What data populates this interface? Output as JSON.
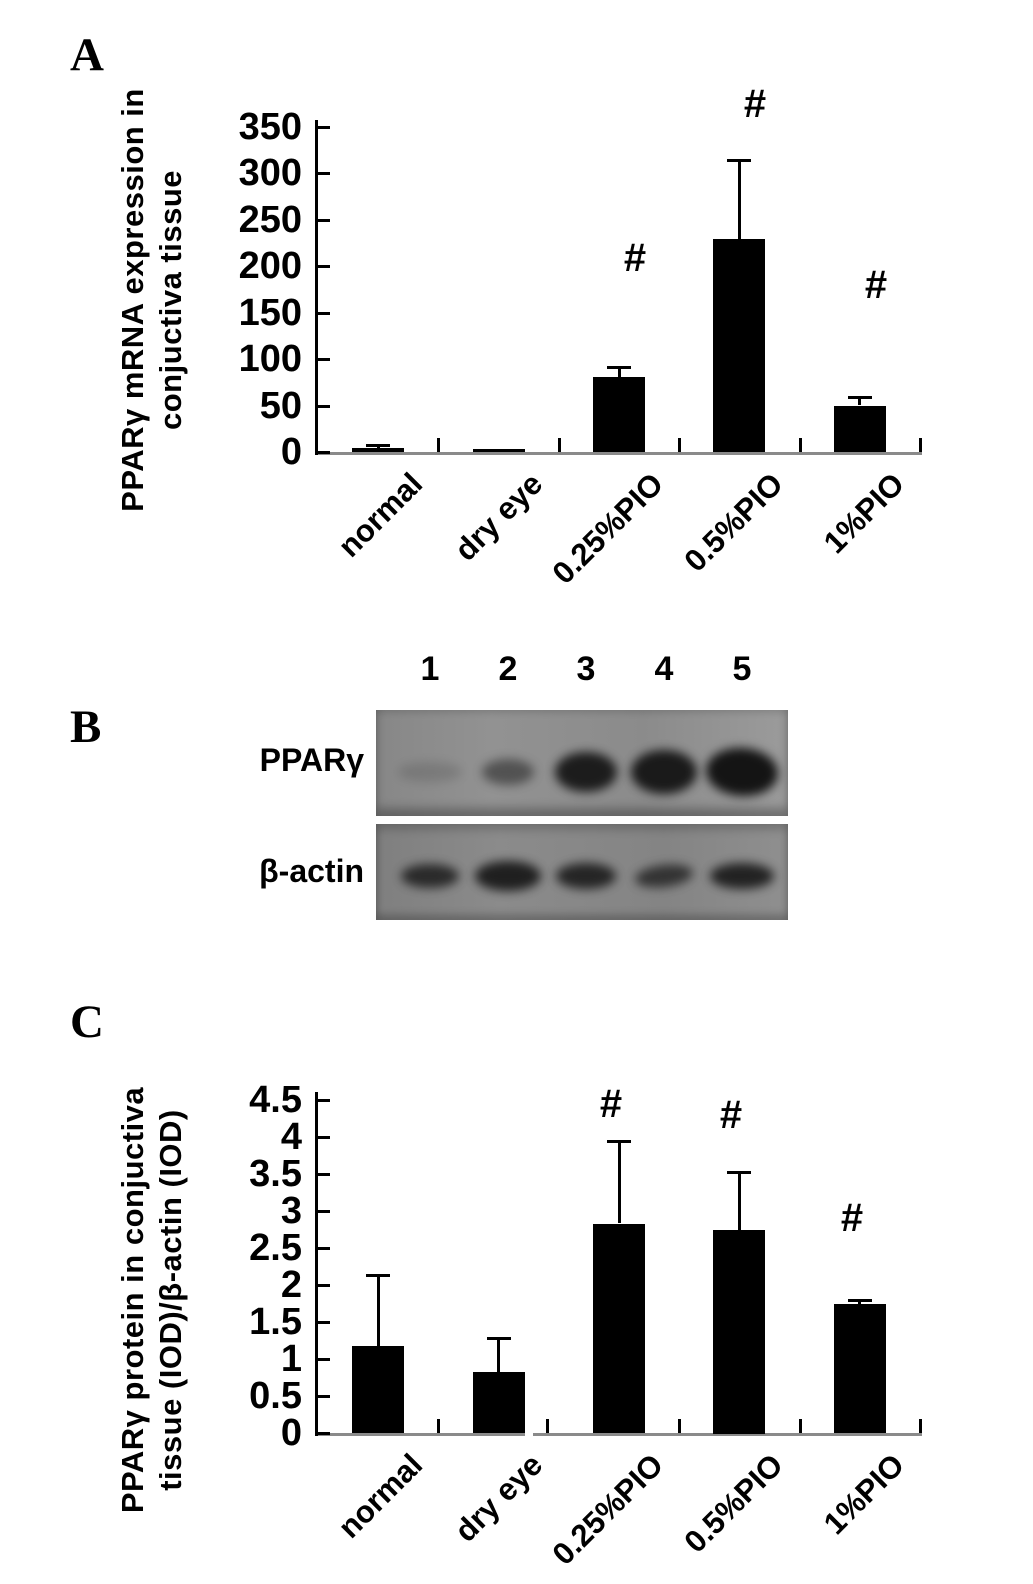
{
  "panels": {
    "a": {
      "letter": "A"
    },
    "b": {
      "letter": "B"
    },
    "c": {
      "letter": "C"
    }
  },
  "chart_data": [
    {
      "id": "A",
      "type": "bar",
      "title": "",
      "xlabel": "",
      "ylabel": "PPARγ mRNA expression in conjuctiva tissue",
      "ylabel_lines": [
        "PPARγ mRNA expression in",
        "conjuctiva tissue"
      ],
      "categories": [
        "normal",
        "dry eye",
        "0.25%PIO",
        "0.5%PIO",
        "1%PIO"
      ],
      "values": [
        4,
        1.5,
        81,
        229,
        50
      ],
      "errors_plus": [
        3,
        0,
        10,
        84,
        8
      ],
      "annotations": [
        "",
        "",
        "#",
        "#",
        "#"
      ],
      "annotation_y_values": [
        null,
        null,
        209,
        375,
        180
      ],
      "ylim": [
        0,
        350
      ],
      "yticks": [
        0,
        50,
        100,
        150,
        200,
        250,
        300,
        350
      ],
      "ytick_labels": [
        "0",
        "50",
        "100",
        "150",
        "200",
        "250",
        "300",
        "350"
      ],
      "grid": false,
      "legend": null,
      "bar_color": "#000000"
    },
    {
      "id": "C",
      "type": "bar",
      "title": "",
      "xlabel": "",
      "ylabel": "PPARγ protein in conjuctiva tissue (IOD)/β-actin (IOD)",
      "ylabel_lines": [
        "PPARγ protein in conjuctiva",
        "tissue (IOD)/β-actin (IOD)"
      ],
      "categories": [
        "normal",
        "dry eye",
        "0.25%PIO",
        "0.5%PIO",
        "1%PIO"
      ],
      "values": [
        1.17,
        0.82,
        2.83,
        2.75,
        1.74
      ],
      "errors_plus": [
        0.95,
        0.45,
        1.1,
        0.77,
        0.04
      ],
      "annotations": [
        "",
        "",
        "#",
        "#",
        "#"
      ],
      "annotation_y_values": [
        null,
        null,
        4.45,
        4.3,
        2.9
      ],
      "ylim": [
        0,
        4.5
      ],
      "yticks": [
        0,
        0.5,
        1,
        1.5,
        2,
        2.5,
        3,
        3.5,
        4,
        4.5
      ],
      "ytick_labels": [
        "0",
        "0.5",
        "1",
        "1.5",
        "2",
        "2.5",
        "3",
        "3.5",
        "4",
        "4.5"
      ],
      "axis_break_after_category": "dry eye",
      "grid": false,
      "legend": null,
      "bar_color": "#000000"
    }
  ],
  "blot": {
    "lane_labels": [
      "1",
      "2",
      "3",
      "4",
      "5"
    ],
    "rows": [
      {
        "label": "PPARγ",
        "band_intensities": [
          0.15,
          0.5,
          0.93,
          0.95,
          1.0
        ]
      },
      {
        "label": "β-actin",
        "band_intensities": [
          0.8,
          0.9,
          0.85,
          0.72,
          0.88
        ]
      }
    ]
  },
  "colors": {
    "bar": "#000000",
    "axis": "#000000",
    "baseline": "#8a8a8a",
    "blot_background": "#8e8e8e",
    "text": "#000000",
    "background": "#ffffff"
  }
}
